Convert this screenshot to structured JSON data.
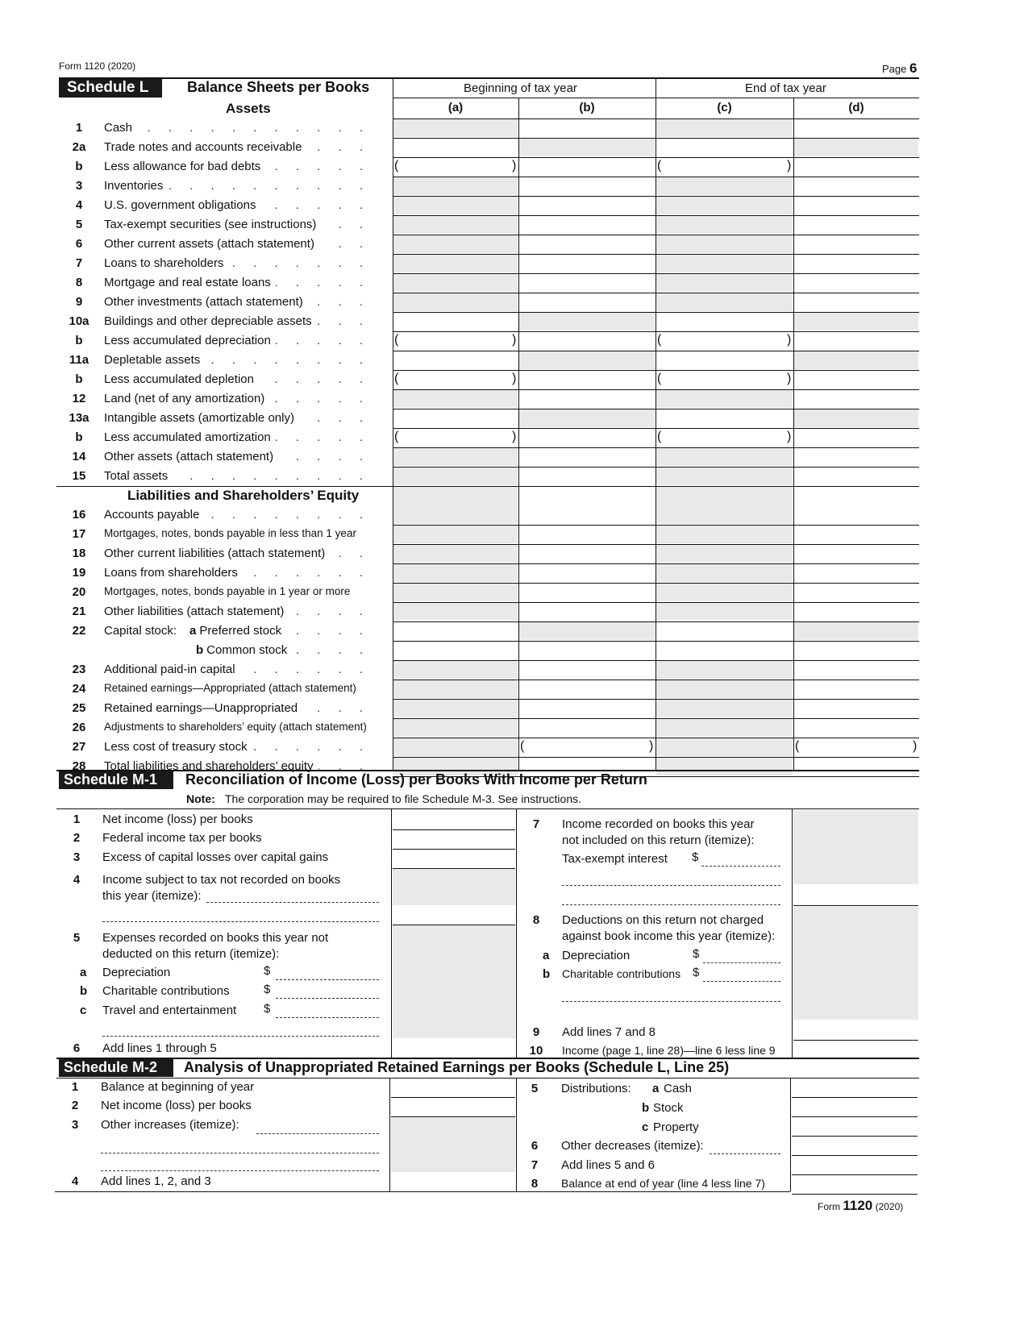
{
  "header": {
    "form_label": "Form 1120 (2020)",
    "page_label": "Page",
    "page_number": "6"
  },
  "schedule_l": {
    "badge": "Schedule L",
    "title": "Balance Sheets per Books",
    "beginning": "Beginning of tax year",
    "end": "End of tax year",
    "columns": [
      "(a)",
      "(b)",
      "(c)",
      "(d)"
    ],
    "assets_heading": "Assets",
    "liabilities_heading": "Liabilities and Shareholders’ Equity",
    "asset_rows": [
      {
        "num": "1",
        "label": "Cash",
        "shaded": [
          "a",
          "c"
        ]
      },
      {
        "num": "2a",
        "label": "Trade notes and accounts receivable",
        "shaded": [
          "b",
          "d"
        ]
      },
      {
        "num": "b",
        "label": "Less allowance for bad debts",
        "shaded": [],
        "parens": [
          "a",
          "c"
        ]
      },
      {
        "num": "3",
        "label": "Inventories",
        "shaded": [
          "a",
          "c"
        ]
      },
      {
        "num": "4",
        "label": "U.S. government obligations",
        "shaded": [
          "a",
          "c"
        ]
      },
      {
        "num": "5",
        "label": "Tax-exempt securities (see instructions)",
        "shaded": [
          "a",
          "c"
        ]
      },
      {
        "num": "6",
        "label": "Other current assets (attach statement)",
        "shaded": [
          "a",
          "c"
        ]
      },
      {
        "num": "7",
        "label": "Loans to shareholders",
        "shaded": [
          "a",
          "c"
        ]
      },
      {
        "num": "8",
        "label": "Mortgage and real estate loans",
        "shaded": [
          "a",
          "c"
        ]
      },
      {
        "num": "9",
        "label": "Other investments (attach statement)",
        "shaded": [
          "a",
          "c"
        ]
      },
      {
        "num": "10a",
        "label": "Buildings and other depreciable assets",
        "shaded": [
          "b",
          "d"
        ]
      },
      {
        "num": "b",
        "label": "Less accumulated depreciation",
        "shaded": [],
        "parens": [
          "a",
          "c"
        ]
      },
      {
        "num": "11a",
        "label": "Depletable assets",
        "shaded": [
          "b",
          "d"
        ]
      },
      {
        "num": "b",
        "label": "Less accumulated depletion",
        "shaded": [],
        "parens": [
          "a",
          "c"
        ]
      },
      {
        "num": "12",
        "label": "Land (net of any amortization)",
        "shaded": [
          "a",
          "c"
        ]
      },
      {
        "num": "13a",
        "label": "Intangible assets (amortizable only)",
        "shaded": [
          "b",
          "d"
        ]
      },
      {
        "num": "b",
        "label": "Less accumulated amortization",
        "shaded": [],
        "parens": [
          "a",
          "c"
        ]
      },
      {
        "num": "14",
        "label": "Other assets (attach statement)",
        "shaded": [
          "a",
          "c"
        ]
      },
      {
        "num": "15",
        "label": "Total assets",
        "shaded": [
          "a",
          "c"
        ]
      }
    ],
    "liability_rows": [
      {
        "num": "16",
        "label": "Accounts payable",
        "shaded": [
          "a",
          "c"
        ]
      },
      {
        "num": "17",
        "label": "Mortgages, notes, bonds payable in less than 1 year",
        "shaded": [
          "a",
          "c"
        ],
        "small": true
      },
      {
        "num": "18",
        "label": "Other current liabilities (attach statement)",
        "shaded": [
          "a",
          "c"
        ]
      },
      {
        "num": "19",
        "label": "Loans from shareholders",
        "shaded": [
          "a",
          "c"
        ]
      },
      {
        "num": "20",
        "label": "Mortgages, notes, bonds payable in 1 year or more",
        "shaded": [
          "a",
          "c"
        ],
        "small": true
      },
      {
        "num": "21",
        "label": "Other liabilities (attach statement)",
        "shaded": [
          "a",
          "c"
        ]
      },
      {
        "num": "22",
        "label": "Capital stock:",
        "sub_letter": "a",
        "sub_label": "Preferred stock",
        "shaded": [
          "b",
          "d"
        ]
      },
      {
        "num": "",
        "label": "",
        "sub_letter": "b",
        "sub_label": "Common stock",
        "shaded": []
      },
      {
        "num": "23",
        "label": "Additional paid-in capital",
        "shaded": [
          "a",
          "c"
        ]
      },
      {
        "num": "24",
        "label": "Retained earnings—Appropriated (attach statement)",
        "shaded": [
          "a",
          "c"
        ],
        "small": true
      },
      {
        "num": "25",
        "label": "Retained earnings—Unappropriated",
        "shaded": [
          "a",
          "c"
        ]
      },
      {
        "num": "26",
        "label": "Adjustments to shareholders’ equity (attach statement)",
        "shaded": [
          "a",
          "c"
        ],
        "small": true
      },
      {
        "num": "27",
        "label": "Less cost of treasury stock",
        "shaded": [
          "a",
          "c"
        ],
        "parens": [
          "b",
          "d"
        ]
      },
      {
        "num": "28",
        "label": "Total liabilities and shareholders’ equity",
        "shaded": [
          "a",
          "c"
        ]
      }
    ]
  },
  "schedule_m1": {
    "badge": "Schedule M-1",
    "title": "Reconciliation of Income (Loss) per Books With Income per Return",
    "note_label": "Note:",
    "note": "The corporation may be required to file Schedule M-3. See instructions.",
    "l1": {
      "num": "1",
      "label": "Net income (loss) per books"
    },
    "l2": {
      "num": "2",
      "label": "Federal income tax per books"
    },
    "l3": {
      "num": "3",
      "label": "Excess of capital losses over capital gains"
    },
    "l4": {
      "num": "4",
      "line1": "Income subject to tax not recorded on books",
      "line2": "this year (itemize):"
    },
    "l5": {
      "num": "5",
      "line1": "Expenses recorded on books this year not",
      "line2": "deducted on this return (itemize):",
      "a": {
        "letter": "a",
        "label": "Depreciation"
      },
      "b": {
        "letter": "b",
        "label": "Charitable contributions"
      },
      "c": {
        "letter": "c",
        "label": "Travel and entertainment"
      }
    },
    "l6": {
      "num": "6",
      "label": "Add lines 1 through 5"
    },
    "l7": {
      "num": "7",
      "line1": "Income recorded on books this year",
      "line2": "not included on this return (itemize):",
      "sub": "Tax-exempt interest"
    },
    "l8": {
      "num": "8",
      "line1": "Deductions on this return not charged",
      "line2": "against book income this year (itemize):",
      "a": {
        "letter": "a",
        "label": "Depreciation"
      },
      "b": {
        "letter": "b",
        "label": "Charitable contributions"
      }
    },
    "l9": {
      "num": "9",
      "label": "Add lines 7 and 8"
    },
    "l10": {
      "num": "10",
      "label": "Income (page 1, line 28)—line 6 less line 9"
    },
    "dollar": "$"
  },
  "schedule_m2": {
    "badge": "Schedule M-2",
    "title": "Analysis of Unappropriated Retained Earnings per Books (Schedule L, Line 25)",
    "l1": {
      "num": "1",
      "label": "Balance at beginning of year"
    },
    "l2": {
      "num": "2",
      "label": "Net income (loss) per books"
    },
    "l3": {
      "num": "3",
      "label": "Other increases (itemize):"
    },
    "l4": {
      "num": "4",
      "label": "Add lines 1, 2, and 3"
    },
    "l5": {
      "num": "5",
      "label": "Distributions:",
      "a": {
        "letter": "a",
        "label": "Cash"
      },
      "b": {
        "letter": "b",
        "label": "Stock"
      },
      "c": {
        "letter": "c",
        "label": "Property"
      }
    },
    "l6": {
      "num": "6",
      "label": "Other decreases (itemize):"
    },
    "l7": {
      "num": "7",
      "label": "Add lines 5 and 6"
    },
    "l8": {
      "num": "8",
      "label": "Balance at end of year (line 4 less line 7)"
    }
  },
  "footer": {
    "form_word": "Form",
    "form_number": "1120",
    "year": "(2020)"
  }
}
